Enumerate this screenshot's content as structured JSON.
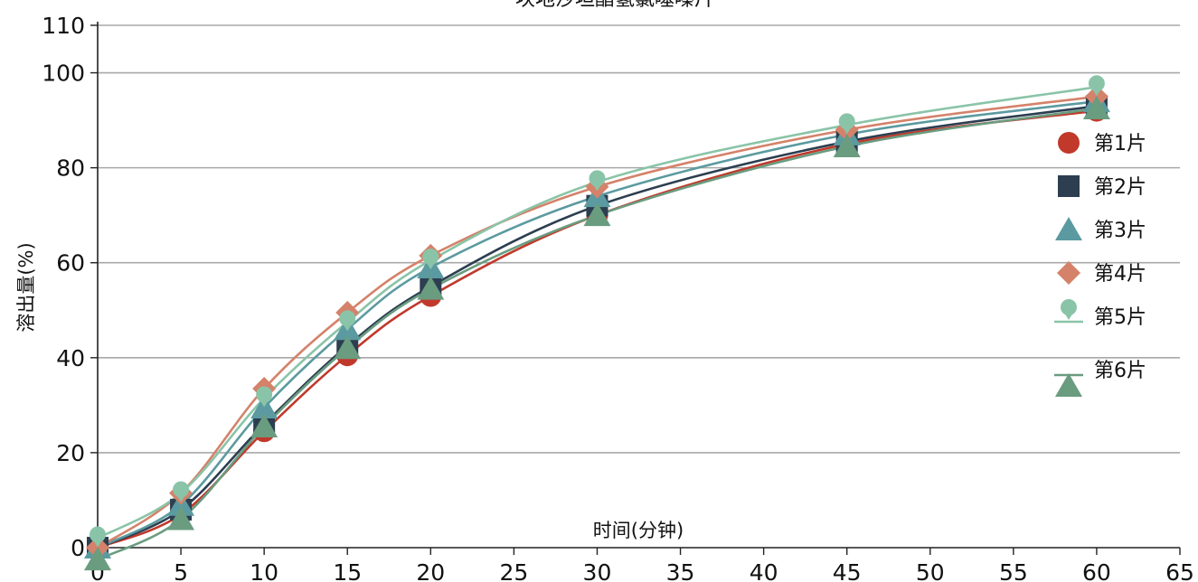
{
  "chart_data": {
    "type": "line",
    "title": "坎地沙坦酯氢氯噻嗪片",
    "xlabel": "时间(分钟)",
    "ylabel": "溶出量(%)",
    "xlim": [
      0,
      65
    ],
    "ylim": [
      0,
      110
    ],
    "x_ticks": [
      "0",
      "5",
      "10",
      "15",
      "20",
      "25",
      "30",
      "35",
      "40",
      "45",
      "50",
      "55",
      "60",
      "65"
    ],
    "y_ticks": [
      "0",
      "20",
      "40",
      "60",
      "80",
      "100",
      "110"
    ],
    "grid": "horizontal",
    "legend_position": "right",
    "x": [
      0,
      5,
      10,
      15,
      20,
      30,
      45,
      60
    ],
    "series": [
      {
        "name": "第1片",
        "color": "#c0392b",
        "marker": "circle",
        "values": [
          0,
          7,
          24.5,
          40.5,
          53,
          70,
          85,
          92
        ]
      },
      {
        "name": "第2片",
        "color": "#2c3e50",
        "marker": "square",
        "values": [
          0,
          8,
          26,
          42.5,
          55,
          72,
          85.5,
          93
        ]
      },
      {
        "name": "第3片",
        "color": "#5b9aa0",
        "marker": "triangle",
        "values": [
          0,
          9,
          29.5,
          46,
          59,
          74,
          87,
          94
        ]
      },
      {
        "name": "第4片",
        "color": "#d4826a",
        "marker": "diamond",
        "values": [
          0,
          11.5,
          33.5,
          49.5,
          61.5,
          76,
          88,
          95
        ]
      },
      {
        "name": "第5片",
        "color": "#8ac4a8",
        "marker": "pin",
        "values": [
          2,
          11.5,
          31.5,
          47.5,
          60.5,
          77,
          89,
          97
        ]
      },
      {
        "name": "第6片",
        "color": "#6a9c80",
        "marker": "triangle",
        "values": [
          -2.5,
          6,
          25.5,
          42,
          54.5,
          70,
          84.5,
          92.5
        ]
      }
    ]
  }
}
